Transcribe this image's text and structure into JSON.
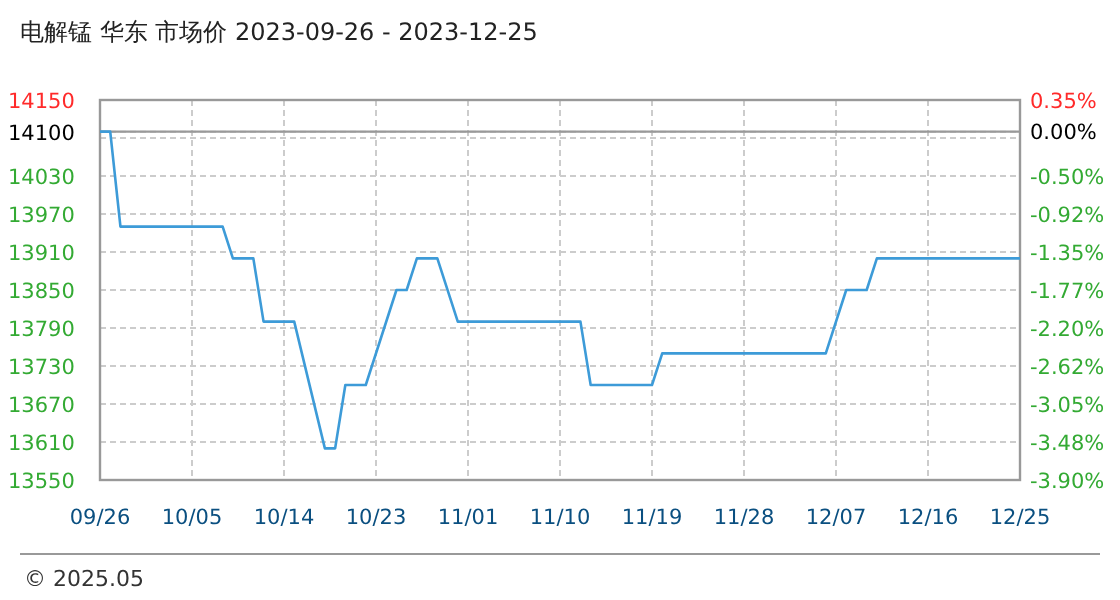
{
  "chart_data": {
    "type": "line",
    "title": "电解锰 华东 市场价 2023-09-26 - 2023-12-25",
    "x": [
      "2023-09-26",
      "2023-09-27",
      "2023-09-28",
      "2023-10-08",
      "2023-10-09",
      "2023-10-11",
      "2023-10-12",
      "2023-10-15",
      "2023-10-18",
      "2023-10-19",
      "2023-10-20",
      "2023-10-22",
      "2023-10-25",
      "2023-10-26",
      "2023-10-27",
      "2023-10-29",
      "2023-10-31",
      "2023-11-12",
      "2023-11-13",
      "2023-11-19",
      "2023-11-20",
      "2023-12-06",
      "2023-12-08",
      "2023-12-10",
      "2023-12-11",
      "2023-12-25"
    ],
    "series": [
      {
        "color": "#3d9bd8",
        "values": [
          14100,
          14100,
          13950,
          13950,
          13900,
          13900,
          13800,
          13800,
          13600,
          13600,
          13700,
          13700,
          13850,
          13850,
          13900,
          13900,
          13800,
          13800,
          13700,
          13700,
          13750,
          13750,
          13850,
          13850,
          13900,
          13900
        ]
      }
    ],
    "xlim": [
      "2023-09-26",
      "2023-12-25"
    ],
    "xticks": [
      {
        "value": "2023-09-26",
        "label": "09/26"
      },
      {
        "value": "2023-10-05",
        "label": "10/05"
      },
      {
        "value": "2023-10-14",
        "label": "10/14"
      },
      {
        "value": "2023-10-23",
        "label": "10/23"
      },
      {
        "value": "2023-11-01",
        "label": "11/01"
      },
      {
        "value": "2023-11-10",
        "label": "11/10"
      },
      {
        "value": "2023-11-19",
        "label": "11/19"
      },
      {
        "value": "2023-11-28",
        "label": "11/28"
      },
      {
        "value": "2023-12-07",
        "label": "12/07"
      },
      {
        "value": "2023-12-16",
        "label": "12/16"
      },
      {
        "value": "2023-12-25",
        "label": "12/25"
      }
    ],
    "ylim": [
      13550,
      14150
    ],
    "yticks": [
      13550,
      13610,
      13670,
      13730,
      13790,
      13850,
      13910,
      13970,
      14030,
      {
        "value": 14090,
        "label": null
      },
      14100,
      14150
    ],
    "y2lim": [
      -3.9,
      0.35
    ],
    "y2ticks": [
      {
        "value": -3.9,
        "label": "-3.90%"
      },
      {
        "value": -3.48,
        "label": "-3.48%"
      },
      {
        "value": -3.05,
        "label": "-3.05%"
      },
      {
        "value": -2.62,
        "label": "-2.62%"
      },
      {
        "value": -2.2,
        "label": "-2.20%"
      },
      {
        "value": -1.77,
        "label": "-1.77%"
      },
      {
        "value": -1.35,
        "label": "-1.35%"
      },
      {
        "value": -0.92,
        "label": "-0.92%"
      },
      {
        "value": -0.5,
        "label": "-0.50%"
      },
      {
        "value": 0.0,
        "label": "0.00%"
      },
      {
        "value": 0.35,
        "label": "0.35%"
      }
    ],
    "ref_lines": [
      {
        "axis": "y",
        "value": 14100,
        "color": "#999999"
      }
    ],
    "grid": true,
    "annotations": [
      "© 2025.05"
    ]
  }
}
